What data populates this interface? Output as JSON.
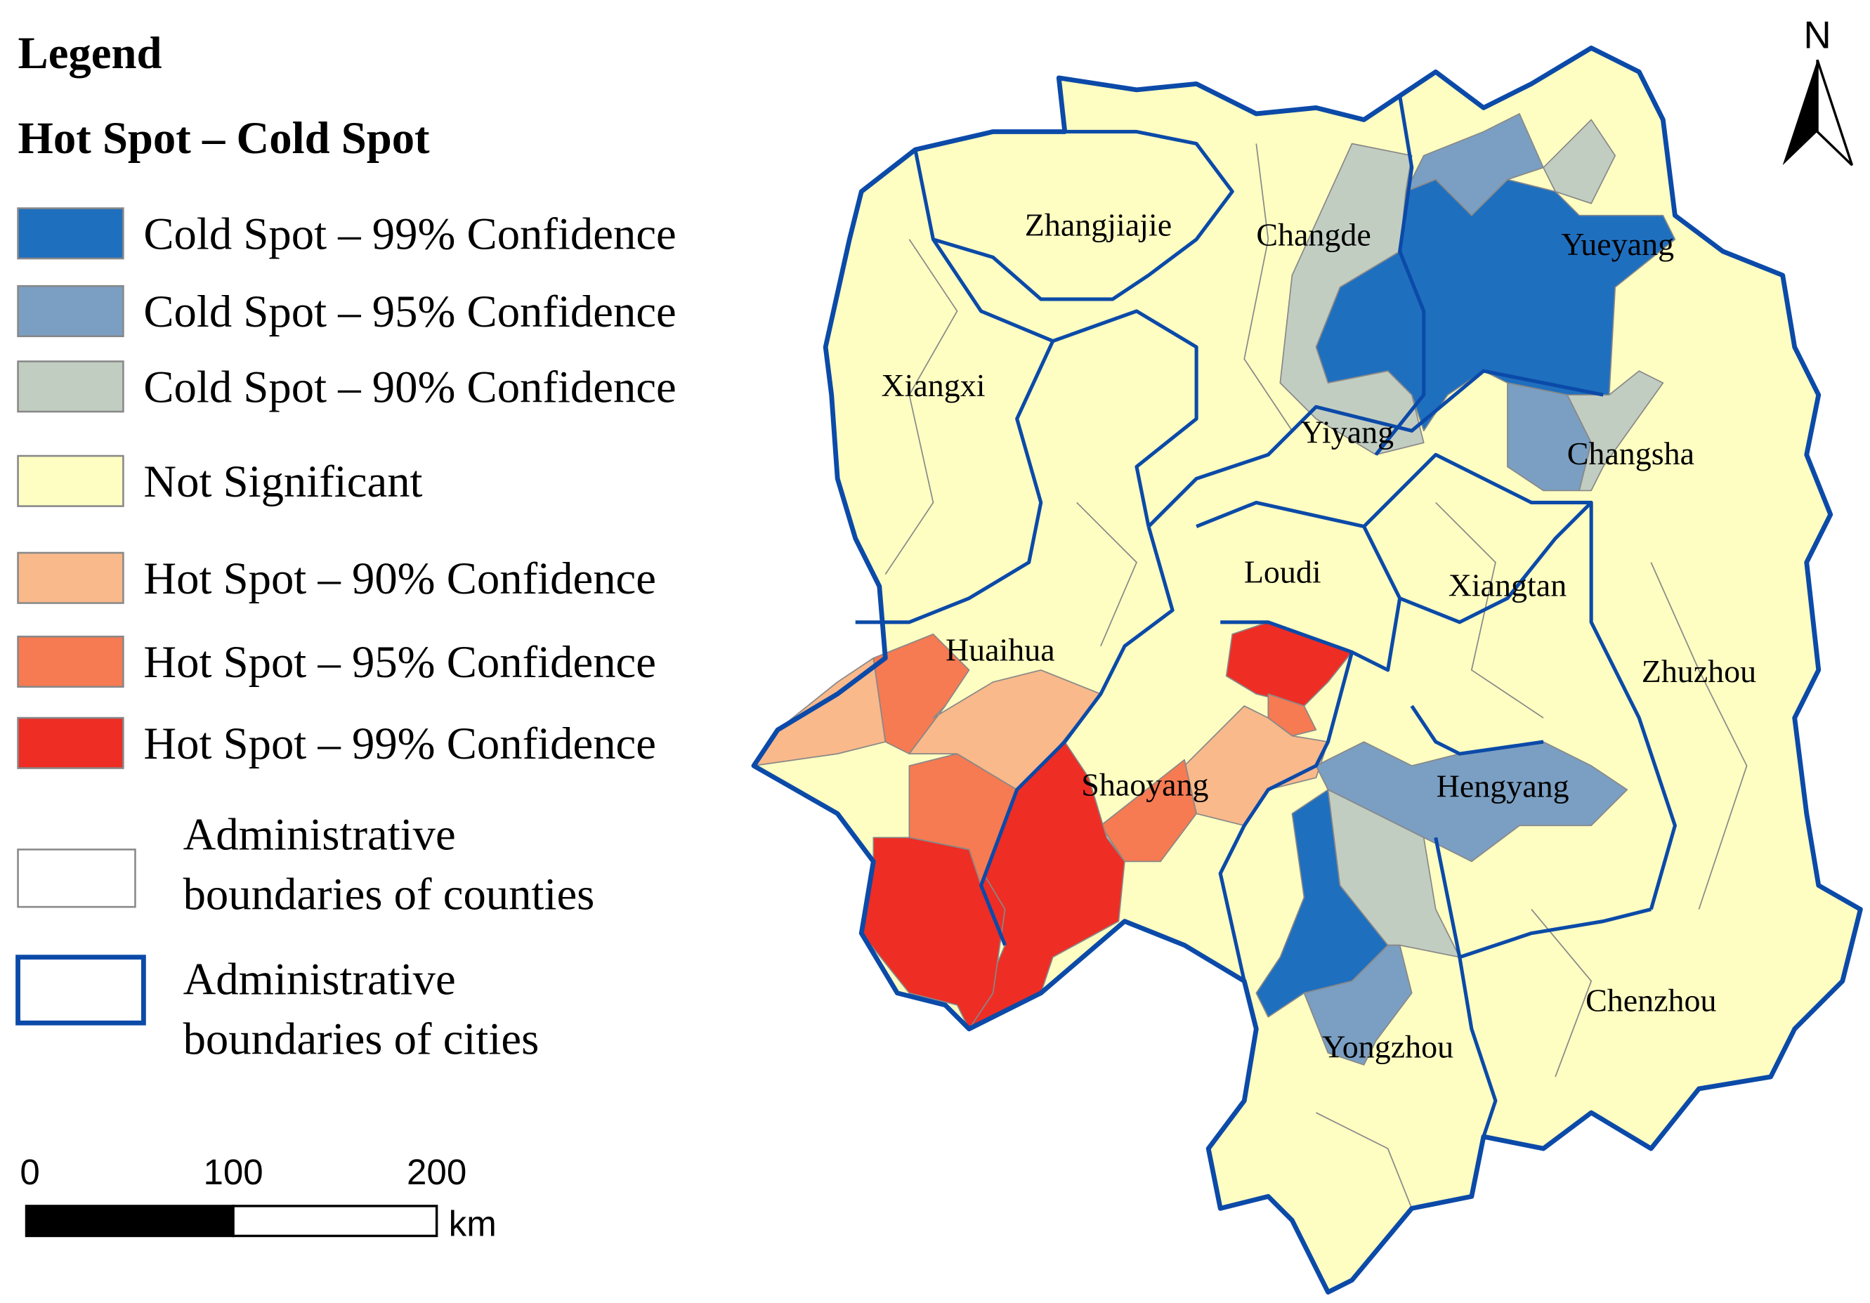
{
  "legend": {
    "title": "Legend",
    "subtitle": "Hot Spot – Cold Spot",
    "items": [
      {
        "label": "Cold Spot – 99% Confidence",
        "color": "#1f6fbf"
      },
      {
        "label": "Cold Spot – 95% Confidence",
        "color": "#7a9fc2"
      },
      {
        "label": "Cold Spot – 90% Confidence",
        "color": "#c2cdc2"
      },
      {
        "label": "Not Significant",
        "color": "#fefec2"
      },
      {
        "label": "Hot Spot – 90% Confidence",
        "color": "#f9b98b"
      },
      {
        "label": "Hot Spot – 95% Confidence",
        "color": "#f67a52"
      },
      {
        "label": "Hot Spot – 99% Confidence",
        "color": "#ee2d25"
      }
    ],
    "boundaries": [
      {
        "lines": [
          "Administrative",
          "boundaries of counties"
        ],
        "color": "#888888"
      },
      {
        "lines": [
          "Administrative",
          "boundaries of cities"
        ],
        "color": "#0b4aa8"
      }
    ]
  },
  "cities": [
    "Zhangjiajie",
    "Changde",
    "Yueyang",
    "Xiangxi",
    "Yiyang",
    "Changsha",
    "Loudi",
    "Xiangtan",
    "Huaihua",
    "Zhuzhou",
    "Shaoyang",
    "Hengyang",
    "Chenzhou",
    "Yongzhou"
  ],
  "scale_bar": {
    "labels": [
      "0",
      "100",
      "200"
    ],
    "unit": "km"
  },
  "north": "N"
}
